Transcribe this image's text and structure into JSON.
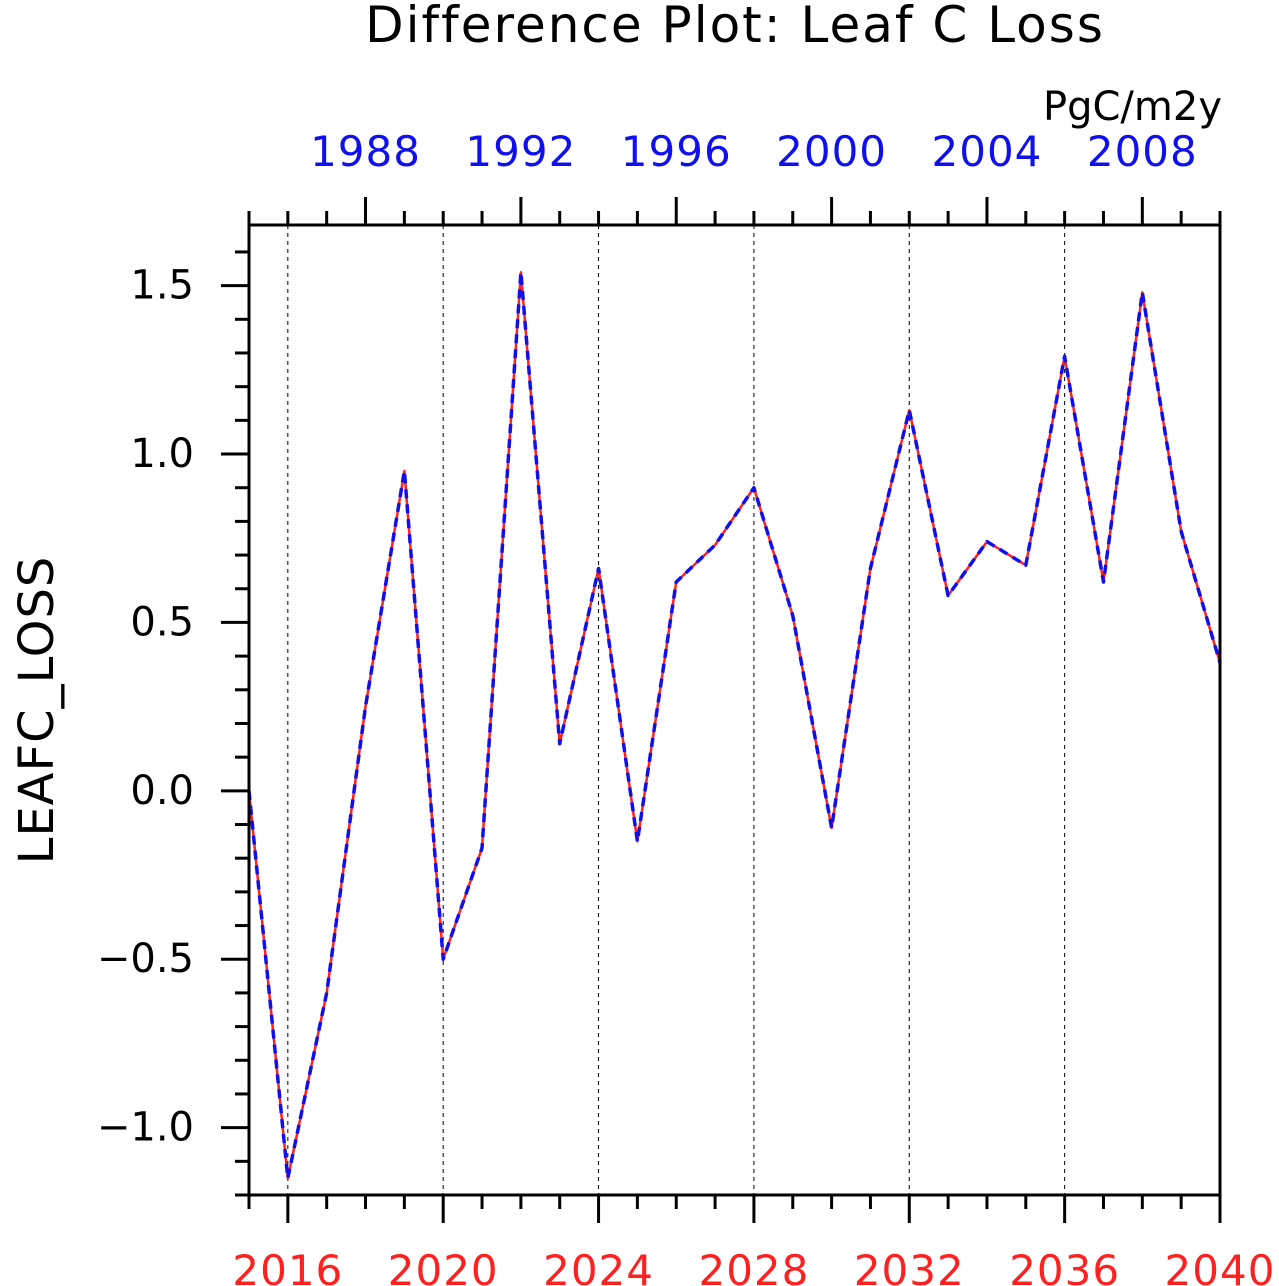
{
  "chart_data": {
    "type": "line",
    "title": "Difference Plot: Leaf C Loss",
    "units": "PgC/m2y",
    "ylabel": "LEAFC_LOSS",
    "xlabel": "",
    "ylim": [
      -1.2,
      1.68
    ],
    "xlim_bottom": [
      2015,
      2040
    ],
    "xlim_top": [
      1985,
      2010
    ],
    "bottom_axis_color": "#ff2020",
    "top_axis_color": "#1010ee",
    "y_ticks": [
      {
        "value": -1.0,
        "label": "−1.0"
      },
      {
        "value": -0.5,
        "label": "−0.5"
      },
      {
        "value": 0.0,
        "label": "0.0"
      },
      {
        "value": 0.5,
        "label": "0.5"
      },
      {
        "value": 1.0,
        "label": "1.0"
      },
      {
        "value": 1.5,
        "label": "1.5"
      }
    ],
    "x_ticks_bottom": [
      {
        "value": 2016,
        "label": "2016"
      },
      {
        "value": 2020,
        "label": "2020"
      },
      {
        "value": 2024,
        "label": "2024"
      },
      {
        "value": 2028,
        "label": "2028"
      },
      {
        "value": 2032,
        "label": "2032"
      },
      {
        "value": 2036,
        "label": "2036"
      },
      {
        "value": 2040,
        "label": "2040"
      }
    ],
    "x_ticks_top": [
      {
        "value": 1988,
        "label": "1988"
      },
      {
        "value": 1992,
        "label": "1992"
      },
      {
        "value": 1996,
        "label": "1996"
      },
      {
        "value": 2000,
        "label": "2000"
      },
      {
        "value": 2004,
        "label": "2004"
      },
      {
        "value": 2008,
        "label": "2008"
      }
    ],
    "grid": "vertical-dashed",
    "x": [
      2015,
      2016,
      2017,
      2018,
      2019,
      2020,
      2021,
      2022,
      2023,
      2024,
      2025,
      2026,
      2027,
      2028,
      2029,
      2030,
      2031,
      2032,
      2033,
      2034,
      2035,
      2036,
      2037,
      2038,
      2039,
      2040
    ],
    "series": [
      {
        "color": "#ff2020",
        "style": "solid",
        "values": [
          0.0,
          -1.15,
          -0.6,
          0.25,
          0.95,
          -0.5,
          -0.17,
          1.54,
          0.14,
          0.66,
          -0.15,
          0.62,
          0.73,
          0.9,
          0.52,
          -0.11,
          0.66,
          1.13,
          0.58,
          0.74,
          0.67,
          1.29,
          0.62,
          1.48,
          0.77,
          0.38
        ]
      },
      {
        "color": "#1010ee",
        "style": "dashed",
        "values": [
          0.0,
          -1.15,
          -0.6,
          0.25,
          0.95,
          -0.5,
          -0.17,
          1.54,
          0.14,
          0.66,
          -0.15,
          0.62,
          0.73,
          0.9,
          0.52,
          -0.11,
          0.66,
          1.13,
          0.58,
          0.74,
          0.67,
          1.29,
          0.62,
          1.48,
          0.77,
          0.38
        ]
      }
    ]
  }
}
